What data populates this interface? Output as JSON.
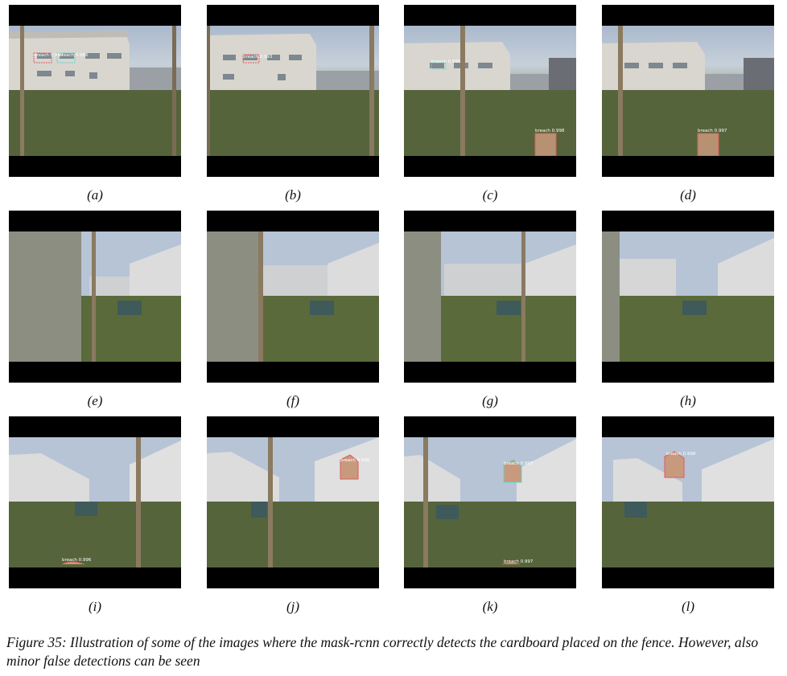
{
  "figure": {
    "subfigures": [
      {
        "label": "(a)",
        "detections": [
          {
            "text": "breach 0.999",
            "color": "#e05a5a"
          },
          {
            "text": "breach 0.996",
            "color": "#5fd6c8"
          }
        ]
      },
      {
        "label": "(b)",
        "detections": [
          {
            "text": "breach 0.993",
            "color": "#e05a5a"
          }
        ]
      },
      {
        "label": "(c)",
        "detections": [
          {
            "text": "breach 0.995",
            "color": "#5fd6c8"
          },
          {
            "text": "breach 0.998",
            "color": "#e05a5a"
          }
        ]
      },
      {
        "label": "(d)",
        "detections": [
          {
            "text": "breach 0.997",
            "color": "#e05a5a"
          }
        ]
      },
      {
        "label": "(e)",
        "detections": []
      },
      {
        "label": "(f)",
        "detections": []
      },
      {
        "label": "(g)",
        "detections": []
      },
      {
        "label": "(h)",
        "detections": []
      },
      {
        "label": "(i)",
        "detections": [
          {
            "text": "breach 0.996",
            "color": "#e05a5a"
          }
        ]
      },
      {
        "label": "(j)",
        "detections": [
          {
            "text": "breach 0.998",
            "color": "#e05a5a"
          }
        ]
      },
      {
        "label": "(k)",
        "detections": [
          {
            "text": "breach 0.997",
            "color": "#5fd6c8"
          },
          {
            "text": "breach 0.997",
            "color": "#e05a5a"
          }
        ]
      },
      {
        "label": "(l)",
        "detections": [
          {
            "text": "breach 0.998",
            "color": "#e05a5a"
          }
        ]
      }
    ],
    "caption": "Figure 35: Illustration of some of the images where the mask-rcnn correctly detects the cardboard placed on the fence. However, also minor false detections can be seen"
  }
}
